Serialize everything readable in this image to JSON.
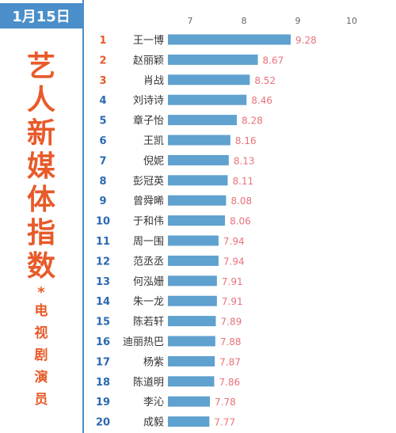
{
  "header": {
    "date": "1月15日",
    "title_chars": [
      "艺",
      "人",
      "新",
      "媒",
      "体",
      "指",
      "数"
    ],
    "asterisk": "*",
    "subtitle_chars": [
      "电",
      "视",
      "剧",
      "演",
      "员"
    ]
  },
  "colors": {
    "accent": "#4a8fc9",
    "bar": "#5fa1cf",
    "value": "#e9727a",
    "title": "#e85a2a",
    "rank_top": "#e85a2a",
    "rank": "#2a68b0"
  },
  "chart_data": {
    "type": "bar",
    "orientation": "horizontal",
    "xlim": [
      7,
      10
    ],
    "x_ticks": [
      "7",
      "8",
      "9",
      "10"
    ],
    "grid": false,
    "ranks": [
      "1",
      "2",
      "3",
      "4",
      "5",
      "6",
      "7",
      "8",
      "9",
      "10",
      "11",
      "12",
      "13",
      "14",
      "15",
      "16",
      "17",
      "18",
      "19",
      "20"
    ],
    "categories": [
      "王一博",
      "赵丽颖",
      "肖战",
      "刘诗诗",
      "章子怡",
      "王凯",
      "倪妮",
      "彭冠英",
      "曾舜晞",
      "于和伟",
      "周一围",
      "范丞丞",
      "何泓姗",
      "朱一龙",
      "陈若轩",
      "迪丽热巴",
      "杨紫",
      "陈道明",
      "李沁",
      "成毅"
    ],
    "values": [
      9.28,
      8.67,
      8.52,
      8.46,
      8.28,
      8.16,
      8.13,
      8.11,
      8.08,
      8.06,
      7.94,
      7.94,
      7.91,
      7.91,
      7.89,
      7.88,
      7.87,
      7.86,
      7.78,
      7.77
    ],
    "value_labels": [
      "9.28",
      "8.67",
      "8.52",
      "8.46",
      "8.28",
      "8.16",
      "8.13",
      "8.11",
      "8.08",
      "8.06",
      "7.94",
      "7.94",
      "7.91",
      "7.91",
      "7.89",
      "7.88",
      "7.87",
      "7.86",
      "7.78",
      "7.77"
    ]
  }
}
